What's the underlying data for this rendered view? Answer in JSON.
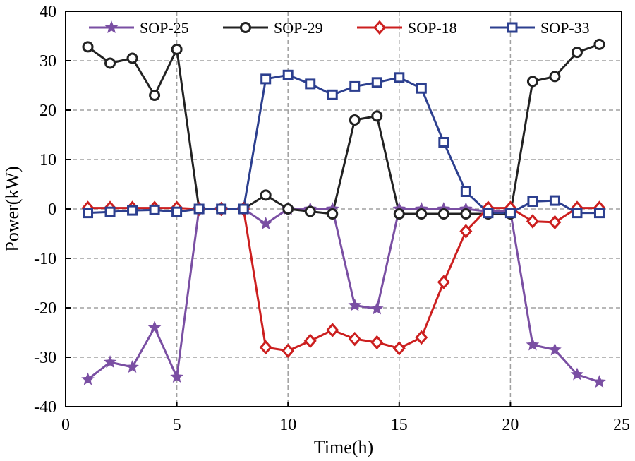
{
  "chart_data": {
    "type": "line",
    "title": "",
    "xlabel": "Time(h)",
    "ylabel": "Power(kW)",
    "xlim": [
      0,
      25
    ],
    "ylim": [
      -40,
      40
    ],
    "xticks": [
      0,
      5,
      10,
      15,
      20,
      25
    ],
    "yticks": [
      -40,
      -30,
      -20,
      -10,
      0,
      10,
      20,
      30,
      40
    ],
    "grid": true,
    "legend": "top",
    "x": [
      1,
      2,
      3,
      4,
      5,
      6,
      7,
      8,
      9,
      10,
      11,
      12,
      13,
      14,
      15,
      16,
      17,
      18,
      19,
      20,
      21,
      22,
      23,
      24
    ],
    "series": [
      {
        "name": "SOP-25",
        "marker": "star",
        "color": "#7a4fa3",
        "values": [
          -34.5,
          -31,
          -32,
          -24,
          -34,
          0,
          0,
          0,
          -3,
          0,
          0,
          0,
          -19.5,
          -20.2,
          0,
          0,
          0,
          0,
          -0.5,
          -0.5,
          -27.5,
          -28.5,
          -33.5,
          -35
        ]
      },
      {
        "name": "SOP-29",
        "marker": "circle",
        "color": "#222222",
        "values": [
          32.8,
          29.5,
          30.5,
          23,
          32.3,
          0,
          0,
          0,
          2.8,
          0,
          -0.5,
          -1,
          18,
          18.8,
          -1,
          -1,
          -1,
          -1,
          -1,
          -1,
          25.8,
          26.8,
          31.7,
          33.3
        ]
      },
      {
        "name": "SOP-18",
        "marker": "diamond",
        "color": "#cc1f1f",
        "values": [
          0.2,
          0.2,
          0.2,
          0.2,
          0.2,
          0,
          0,
          0,
          -28,
          -28.7,
          -26.7,
          -24.5,
          -26.3,
          -27,
          -28.2,
          -26,
          -14.8,
          -4.5,
          0.2,
          0.2,
          -2.5,
          -2.7,
          0.2,
          0.2
        ]
      },
      {
        "name": "SOP-33",
        "marker": "square",
        "color": "#2c3f8f",
        "values": [
          -0.8,
          -0.6,
          -0.3,
          -0.2,
          -0.6,
          0,
          0,
          0,
          26.3,
          27.1,
          25.3,
          23.1,
          24.8,
          25.6,
          26.6,
          24.4,
          13.5,
          3.5,
          -0.8,
          -0.8,
          1.5,
          1.7,
          -0.8,
          -0.8
        ]
      }
    ]
  }
}
